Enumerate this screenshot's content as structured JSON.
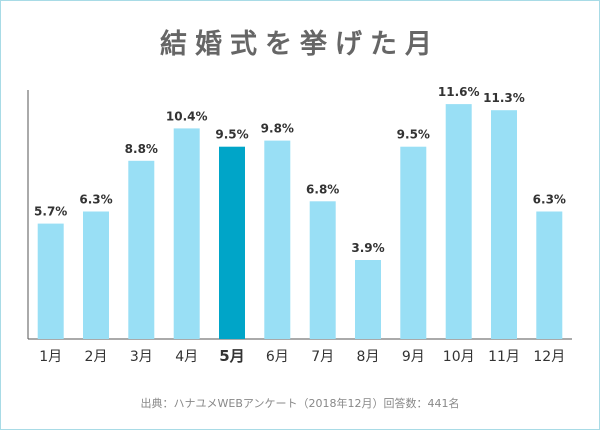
{
  "header": {
    "title": "結婚式を挙げた月"
  },
  "footer": {
    "source": "出典：ハナユメWEBアンケート（2018年12月）回答数：441名"
  },
  "chart_data": {
    "type": "bar",
    "title": "結婚式を挙げた月",
    "categories": [
      "1月",
      "2月",
      "3月",
      "4月",
      "5月",
      "6月",
      "7月",
      "8月",
      "9月",
      "10月",
      "11月",
      "12月"
    ],
    "values": [
      5.7,
      6.3,
      8.8,
      10.4,
      9.5,
      9.8,
      6.8,
      3.9,
      9.5,
      11.6,
      11.3,
      6.3
    ],
    "value_labels": [
      "5.7%",
      "6.3%",
      "8.8%",
      "10.4%",
      "9.5%",
      "9.8%",
      "6.8%",
      "3.9%",
      "9.5%",
      "11.6%",
      "11.3%",
      "6.3%"
    ],
    "highlight_category": "5月",
    "ylim": [
      0,
      12.2
    ],
    "xlabel": "",
    "ylabel": "",
    "grid": false,
    "colors": {
      "bar": "#99dff5",
      "highlight": "#00a5c8",
      "axis": "#555555",
      "label": "#333333"
    }
  }
}
